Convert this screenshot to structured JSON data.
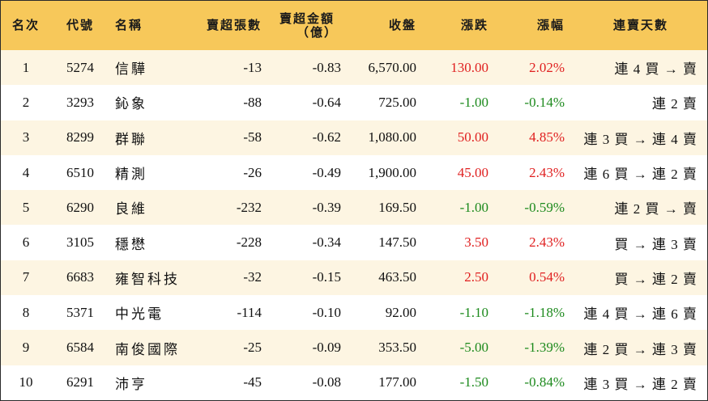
{
  "colors": {
    "header_bg": "#f7c85a",
    "alt_row_bg": "#fdf5e2",
    "up": "#e02020",
    "down": "#1d8a1d"
  },
  "headers": {
    "rank": "名次",
    "code": "代號",
    "name": "名稱",
    "sell_lots": "賣超張數",
    "sell_amount_line1": "賣超金額",
    "sell_amount_line2": "（億）",
    "close": "收盤",
    "change": "漲跌",
    "change_pct": "漲幅",
    "streak": "連賣天數"
  },
  "rows": [
    {
      "rank": "1",
      "code": "5274",
      "name": "信驊",
      "sell_lots": "-13",
      "sell_amount": "-0.83",
      "close": "6,570.00",
      "change": "130.00",
      "change_pct": "2.02%",
      "dir": "up",
      "streak": "連 4 買 → 賣"
    },
    {
      "rank": "2",
      "code": "3293",
      "name": "鈊象",
      "sell_lots": "-88",
      "sell_amount": "-0.64",
      "close": "725.00",
      "change": "-1.00",
      "change_pct": "-0.14%",
      "dir": "down",
      "streak": "連 2 賣"
    },
    {
      "rank": "3",
      "code": "8299",
      "name": "群聯",
      "sell_lots": "-58",
      "sell_amount": "-0.62",
      "close": "1,080.00",
      "change": "50.00",
      "change_pct": "4.85%",
      "dir": "up",
      "streak": "連 3 買 → 連 4 賣"
    },
    {
      "rank": "4",
      "code": "6510",
      "name": "精測",
      "sell_lots": "-26",
      "sell_amount": "-0.49",
      "close": "1,900.00",
      "change": "45.00",
      "change_pct": "2.43%",
      "dir": "up",
      "streak": "連 6 買 → 連 2 賣"
    },
    {
      "rank": "5",
      "code": "6290",
      "name": "良維",
      "sell_lots": "-232",
      "sell_amount": "-0.39",
      "close": "169.50",
      "change": "-1.00",
      "change_pct": "-0.59%",
      "dir": "down",
      "streak": "連 2 買 → 賣"
    },
    {
      "rank": "6",
      "code": "3105",
      "name": "穩懋",
      "sell_lots": "-228",
      "sell_amount": "-0.34",
      "close": "147.50",
      "change": "3.50",
      "change_pct": "2.43%",
      "dir": "up",
      "streak": "買 → 連 3 賣"
    },
    {
      "rank": "7",
      "code": "6683",
      "name": "雍智科技",
      "sell_lots": "-32",
      "sell_amount": "-0.15",
      "close": "463.50",
      "change": "2.50",
      "change_pct": "0.54%",
      "dir": "up",
      "streak": "買 → 連 2 賣"
    },
    {
      "rank": "8",
      "code": "5371",
      "name": "中光電",
      "sell_lots": "-114",
      "sell_amount": "-0.10",
      "close": "92.00",
      "change": "-1.10",
      "change_pct": "-1.18%",
      "dir": "down",
      "streak": "連 4 買 → 連 6 賣"
    },
    {
      "rank": "9",
      "code": "6584",
      "name": "南俊國際",
      "sell_lots": "-25",
      "sell_amount": "-0.09",
      "close": "353.50",
      "change": "-5.00",
      "change_pct": "-1.39%",
      "dir": "down",
      "streak": "連 2 買 → 連 3 賣"
    },
    {
      "rank": "10",
      "code": "6291",
      "name": "沛亨",
      "sell_lots": "-45",
      "sell_amount": "-0.08",
      "close": "177.00",
      "change": "-1.50",
      "change_pct": "-0.84%",
      "dir": "down",
      "streak": "連 3 買 → 連 2 賣"
    }
  ]
}
